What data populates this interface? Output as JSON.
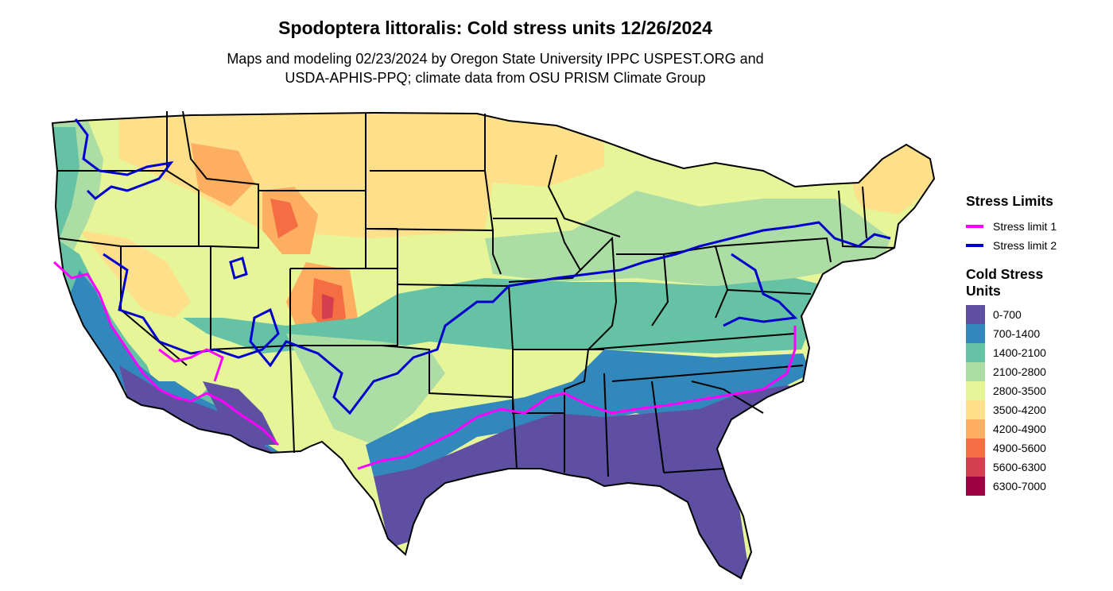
{
  "title": "Spodoptera littoralis: Cold stress units 12/26/2024",
  "subtitle": {
    "line1": "Maps and modeling 02/23/2024 by Oregon State University IPPC USPEST.ORG and",
    "line2": "USDA-APHIS-PPQ; climate data from OSU PRISM Climate Group"
  },
  "legend_limits": {
    "title": "Stress Limits",
    "items": [
      {
        "label": "Stress limit 1",
        "color": "#ff00ff"
      },
      {
        "label": "Stress limit 2",
        "color": "#0000cc"
      }
    ]
  },
  "legend_units": {
    "title_line1": "Cold Stress",
    "title_line2": "Units",
    "items": [
      {
        "label": "0-700",
        "color": "#5e4fa2"
      },
      {
        "label": "700-1400",
        "color": "#3288bd"
      },
      {
        "label": "1400-2100",
        "color": "#66c2a5"
      },
      {
        "label": "2100-2800",
        "color": "#abdda4"
      },
      {
        "label": "2800-3500",
        "color": "#e6f598"
      },
      {
        "label": "3500-4200",
        "color": "#fee08b"
      },
      {
        "label": "4200-4900",
        "color": "#fdae61"
      },
      {
        "label": "4900-5600",
        "color": "#f46d43"
      },
      {
        "label": "5600-6300",
        "color": "#d53e4f"
      },
      {
        "label": "6300-7000",
        "color": "#9e0142"
      }
    ]
  }
}
